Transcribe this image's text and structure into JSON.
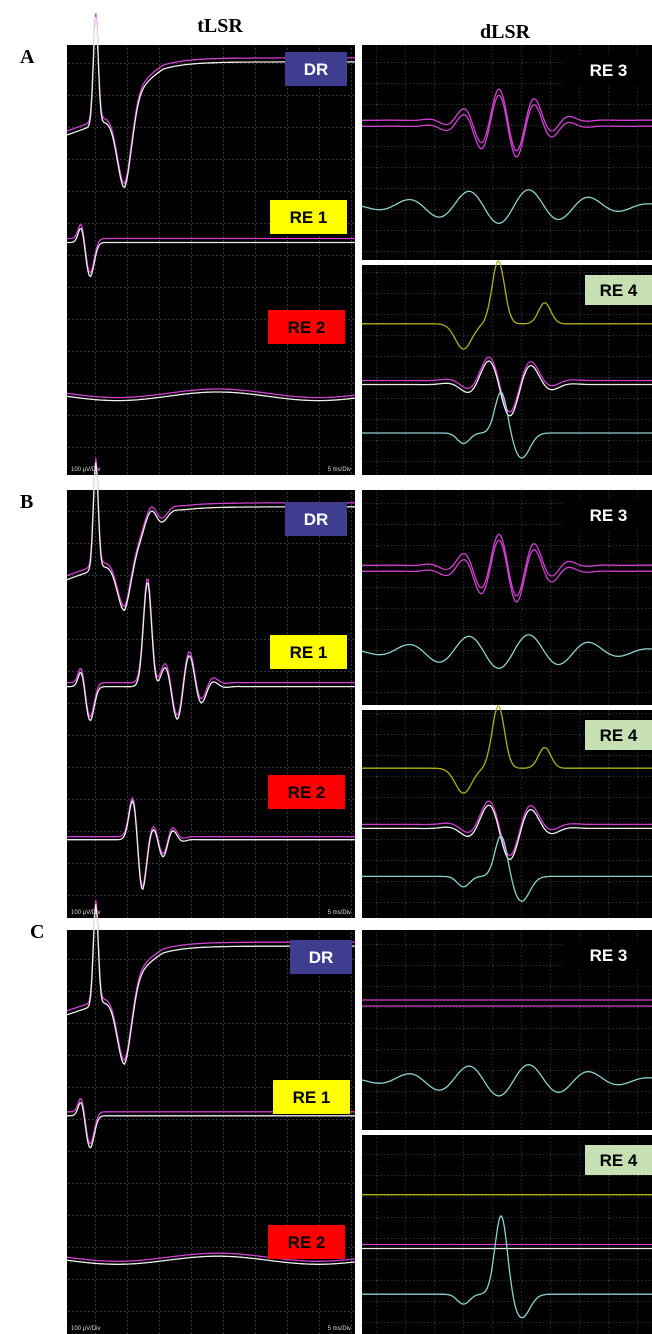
{
  "column_headers": [
    "tLSR",
    "dLSR"
  ],
  "rows": [
    {
      "label": "A",
      "tlsr": {
        "labels": [
          "DR",
          "RE 1",
          "RE 2"
        ],
        "y_scale": "100 µV/Div",
        "x_scale": "5 ms/Div"
      },
      "dlsr": [
        "RE 3",
        "RE 4"
      ]
    },
    {
      "label": "B",
      "tlsr": {
        "labels": [
          "DR",
          "RE 1",
          "RE 2"
        ],
        "y_scale": "100 µV/Div",
        "x_scale": "5 ms/Div"
      },
      "dlsr": [
        "RE 3",
        "RE 4"
      ]
    },
    {
      "label": "C",
      "tlsr": {
        "labels": [
          "DR",
          "RE 1",
          "RE 2"
        ],
        "y_scale": "100 µV/Div",
        "x_scale": "5 ms/Div"
      },
      "dlsr": [
        "RE 3",
        "RE 4"
      ]
    }
  ]
}
